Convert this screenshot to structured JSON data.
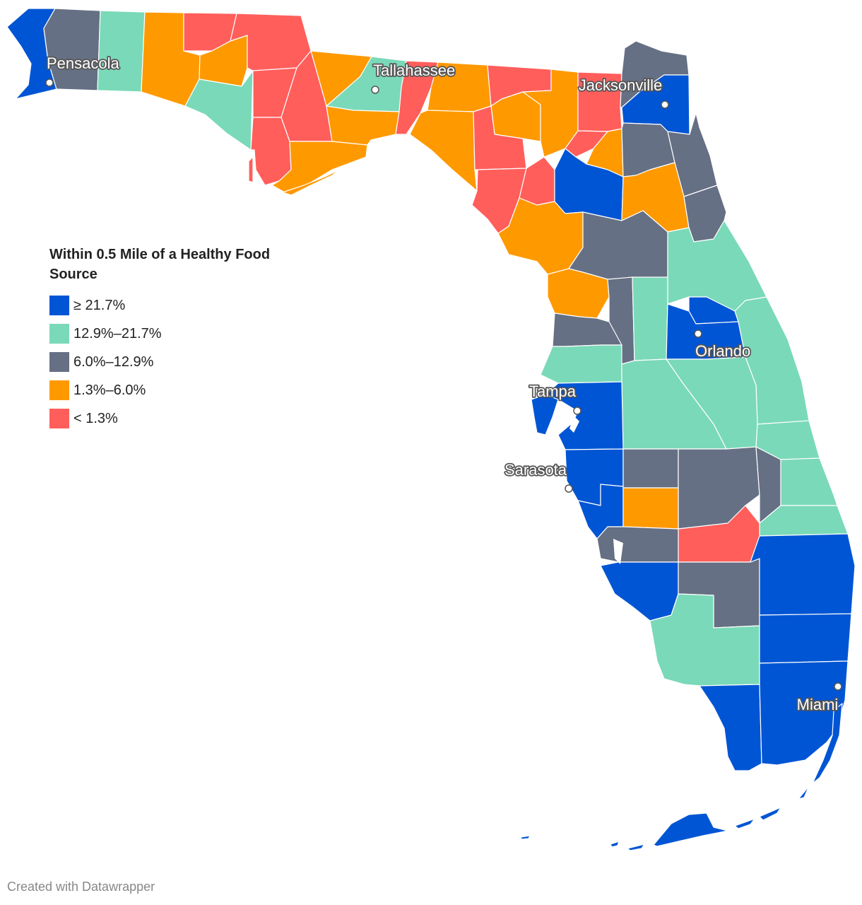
{
  "map": {
    "colors": {
      "c1": "#0055d4",
      "c2": "#7ad9b8",
      "c3": "#667084",
      "c4": "#ff9900",
      "c5": "#ff5e5b"
    },
    "cities": [
      {
        "name": "Pensacola"
      },
      {
        "name": "Tallahassee"
      },
      {
        "name": "Jacksonville"
      },
      {
        "name": "Orlando"
      },
      {
        "name": "Tampa"
      },
      {
        "name": "Sarasota"
      },
      {
        "name": "Miami"
      }
    ]
  },
  "legend": {
    "title": "Within 0.5 Mile of a Healthy Food Source",
    "items": [
      {
        "label": "≥ 21.7%",
        "color": "#0055d4"
      },
      {
        "label": "12.9%–21.7%",
        "color": "#7ad9b8"
      },
      {
        "label": "6.0%–12.9%",
        "color": "#667084"
      },
      {
        "label": "1.3%–6.0%",
        "color": "#ff9900"
      },
      {
        "label": "< 1.3%",
        "color": "#ff5e5b"
      }
    ]
  },
  "credit": "Created with Datawrapper"
}
